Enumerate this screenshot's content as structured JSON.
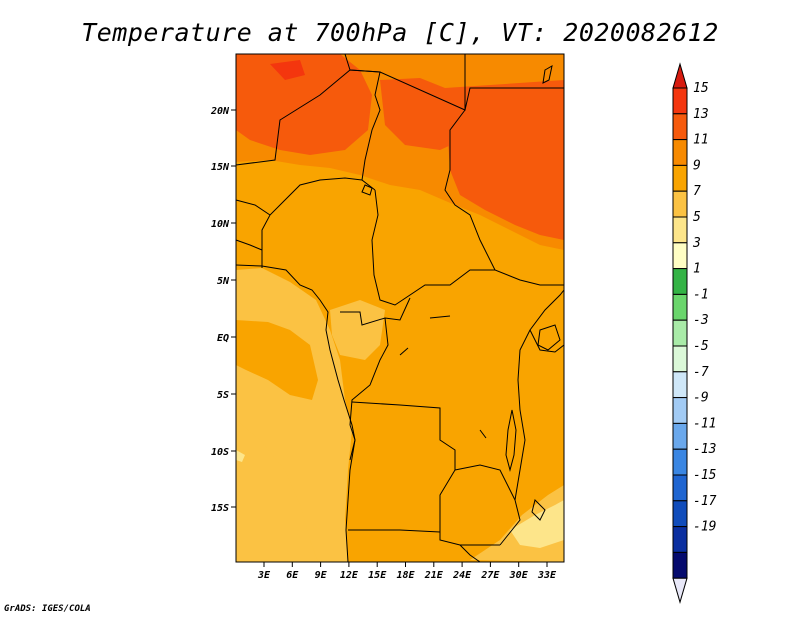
{
  "title": "Temperature at 700hPa [C], VT: 2020082612",
  "credit": "GrADS: IGES/COLA",
  "map": {
    "lat_ticks": [
      "20N",
      "15N",
      "10N",
      "5N",
      "EQ",
      "5S",
      "10S",
      "15S"
    ],
    "lon_ticks": [
      "3E",
      "6E",
      "9E",
      "12E",
      "15E",
      "18E",
      "21E",
      "24E",
      "27E",
      "30E",
      "33E"
    ],
    "lat_range": [
      -19.5,
      24.5
    ],
    "lon_range": [
      0,
      35
    ],
    "region": "Central Africa"
  },
  "colorbar": {
    "labels": [
      "15",
      "13",
      "11",
      "9",
      "7",
      "5",
      "3",
      "1",
      "-1",
      "-3",
      "-5",
      "-7",
      "-9",
      "-11",
      "-13",
      "-15",
      "-17",
      "-19"
    ],
    "colors": [
      "#f4360e",
      "#f65a0c",
      "#f78a00",
      "#f9a400",
      "#fbc243",
      "#fde58a",
      "#fffec4",
      "#33b345",
      "#6ad66c",
      "#a9eba8",
      "#dbf8d8",
      "#cfe7f8",
      "#a2cbf4",
      "#6aa8ec",
      "#3a86e2",
      "#1f65d1",
      "#104cbb",
      "#0a2fa0",
      "#050b6e"
    ],
    "top_arrow_color": "#d71b0f",
    "bottom_arrow_color": "#e8e8f8"
  }
}
